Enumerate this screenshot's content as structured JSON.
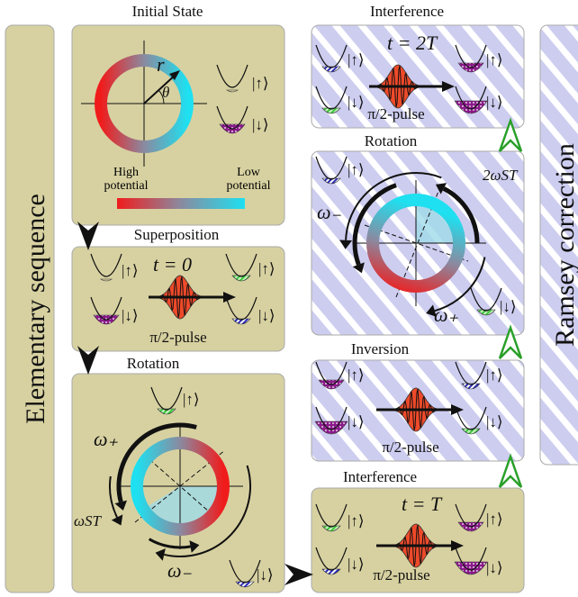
{
  "sidebars": {
    "left": "Elementary sequence",
    "right": "Ramsey correction"
  },
  "panels": [
    {
      "title": "Initial State",
      "labels": [
        "r",
        "θ",
        "|↑⟩",
        "|↓⟩",
        "High potential",
        "Low potential"
      ]
    },
    {
      "title": "Superposition",
      "labels": [
        "t = 0",
        "|↑⟩",
        "|↓⟩",
        "π/2-pulse",
        "|↑⟩",
        "|↓⟩"
      ]
    },
    {
      "title": "Rotation",
      "labels": [
        "|↑⟩",
        "ω₊",
        "ωST",
        "ω₋",
        "|↓⟩"
      ]
    },
    {
      "title": "Interference",
      "labels": [
        "t = 2T",
        "|↑⟩",
        "|↓⟩",
        "π/2-pulse",
        "|↑⟩",
        "|↓⟩"
      ]
    },
    {
      "title": "Rotation",
      "labels": [
        "|↑⟩",
        "ω₋",
        "2ωST",
        "ω₊",
        "|↓⟩"
      ]
    },
    {
      "title": "Inversion",
      "labels": [
        "|↑⟩",
        "|↓⟩",
        "π/2-pulse",
        "|↑⟩",
        "|↓⟩"
      ]
    },
    {
      "title": "Interference",
      "labels": [
        "t = T",
        "|↑⟩",
        "|↓⟩",
        "π/2-pulse",
        "|↑⟩",
        "|↓⟩"
      ]
    }
  ]
}
